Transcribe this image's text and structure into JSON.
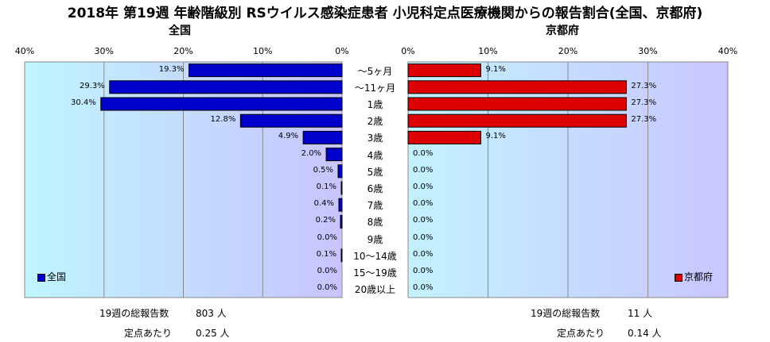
{
  "title": "2018年 第19週 年齢階級別 RSウイルス感染症患者 小児科定点医療機関からの報告割合(全国、京都府)",
  "colors": {
    "national": "#0000cc",
    "kyoto": "#dd0000"
  },
  "chart_data": [
    {
      "type": "bar",
      "orientation": "horizontal",
      "direction": "right-to-left",
      "title": "全国",
      "legend": "全国",
      "legend_position": "bottom-left",
      "xlim": [
        0,
        40
      ],
      "xticks": [
        "40%",
        "30%",
        "20%",
        "10%",
        "0%"
      ],
      "categories": [
        "〜5ヶ月",
        "〜11ヶ月",
        "1歳",
        "2歳",
        "3歳",
        "4歳",
        "5歳",
        "6歳",
        "7歳",
        "8歳",
        "9歳",
        "10〜14歳",
        "15〜19歳",
        "20歳以上"
      ],
      "values": [
        19.3,
        29.3,
        30.4,
        12.8,
        4.9,
        2.0,
        0.5,
        0.1,
        0.4,
        0.2,
        0.0,
        0.1,
        0.0,
        0.0
      ],
      "value_labels": [
        "19.3%",
        "29.3%",
        "30.4%",
        "12.8%",
        "4.9%",
        "2.0%",
        "0.5%",
        "0.1%",
        "0.4%",
        "0.2%",
        "0.0%",
        "0.1%",
        "0.0%",
        "0.0%"
      ]
    },
    {
      "type": "bar",
      "orientation": "horizontal",
      "direction": "left-to-right",
      "title": "京都府",
      "legend": "京都府",
      "legend_position": "bottom-right",
      "xlim": [
        0,
        40
      ],
      "xticks": [
        "0%",
        "10%",
        "20%",
        "30%",
        "40%"
      ],
      "categories": [
        "〜5ヶ月",
        "〜11ヶ月",
        "1歳",
        "2歳",
        "3歳",
        "4歳",
        "5歳",
        "6歳",
        "7歳",
        "8歳",
        "9歳",
        "10〜14歳",
        "15〜19歳",
        "20歳以上"
      ],
      "values": [
        9.1,
        27.3,
        27.3,
        27.3,
        9.1,
        0.0,
        0.0,
        0.0,
        0.0,
        0.0,
        0.0,
        0.0,
        0.0,
        0.0
      ],
      "value_labels": [
        "9.1%",
        "27.3%",
        "27.3%",
        "27.3%",
        "9.1%",
        "0.0%",
        "0.0%",
        "0.0%",
        "0.0%",
        "0.0%",
        "0.0%",
        "0.0%",
        "0.0%",
        "0.0%"
      ]
    }
  ],
  "footer": {
    "national_total_label": "19週の総報告数",
    "national_total_value": "803 人",
    "national_per_label": "定点あたり",
    "national_per_value": "0.25 人",
    "kyoto_total_label": "19週の総報告数",
    "kyoto_total_value": "11 人",
    "kyoto_per_label": "定点あたり",
    "kyoto_per_value": "0.14 人"
  }
}
